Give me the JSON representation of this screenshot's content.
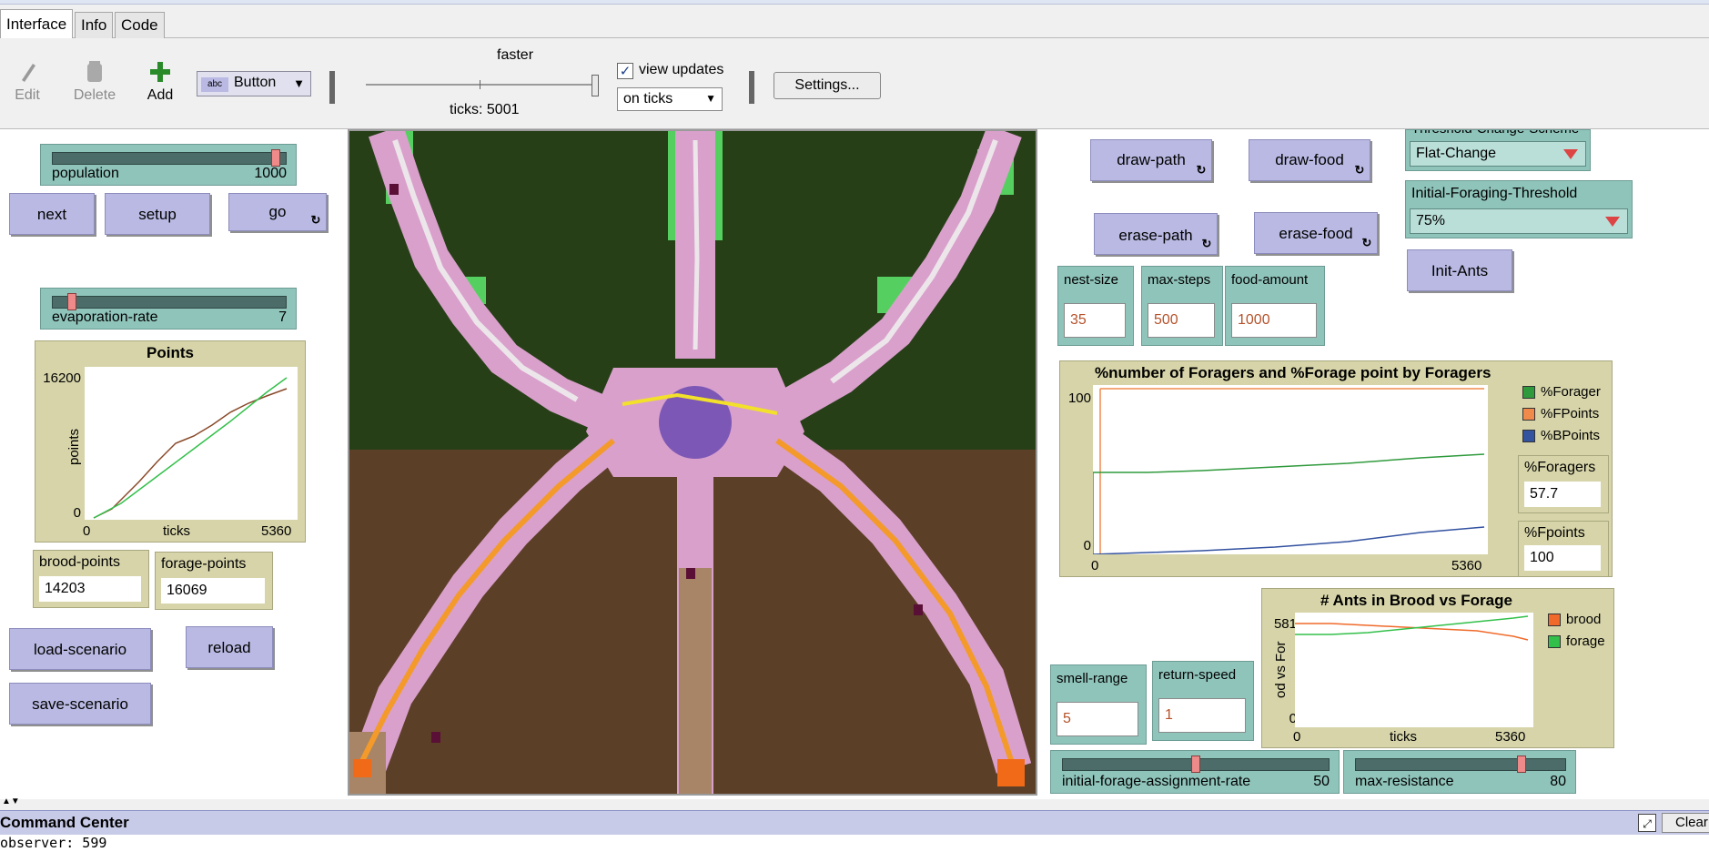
{
  "tabs": [
    "Interface",
    "Info",
    "Code"
  ],
  "toolbar": {
    "edit": "Edit",
    "delete": "Delete",
    "add": "Add",
    "widget_type": "Button",
    "speed_label": "faster",
    "ticks_label": "ticks: 5001",
    "view_updates": "view updates",
    "view_updates_checked": true,
    "update_mode": "on ticks",
    "settings": "Settings..."
  },
  "left": {
    "population": {
      "label": "population",
      "value": "1000",
      "fraction": 0.97
    },
    "buttons": {
      "next": "next",
      "setup": "setup",
      "go": "go"
    },
    "evaporation": {
      "label": "evaporation-rate",
      "value": "7",
      "fraction": 0.07
    },
    "points_plot": {
      "title": "Points",
      "ylabel": "points",
      "xlabel": "ticks",
      "ymax": "16200",
      "ymin": "0",
      "xmin": "0",
      "xmax": "5360"
    },
    "brood_points": {
      "label": "brood-points",
      "value": "14203"
    },
    "forage_points": {
      "label": "forage-points",
      "value": "16069"
    },
    "load_scenario": "load-scenario",
    "reload": "reload",
    "save_scenario": "save-scenario"
  },
  "right": {
    "draw_path": "draw-path",
    "draw_food": "draw-food",
    "erase_path": "erase-path",
    "erase_food": "erase-food",
    "threshold_scheme": {
      "label": "Threshold-Change-Scheme",
      "value": "Flat-Change"
    },
    "initial_threshold": {
      "label": "Initial-Foraging-Threshold",
      "value": "75%"
    },
    "init_ants": "Init-Ants",
    "nest_size": {
      "label": "nest-size",
      "value": "35"
    },
    "max_steps": {
      "label": "max-steps",
      "value": "500"
    },
    "food_amount": {
      "label": "food-amount",
      "value": "1000"
    },
    "foragers_plot": {
      "title": "%number of Foragers and %Forage point by Foragers",
      "ymax": "100",
      "ymin": "0",
      "xmin": "0",
      "xmax": "5360",
      "legend": [
        "%Forager",
        "%FPoints",
        "%BPoints"
      ],
      "colors": [
        "#2f9a3c",
        "#f08a4b",
        "#3352a0"
      ]
    },
    "pct_foragers": {
      "label": "%Foragers",
      "value": "57.7"
    },
    "pct_fpoints": {
      "label": "%Fpoints",
      "value": "100"
    },
    "ants_plot": {
      "title": "# Ants in Brood vs Forage",
      "ylabel": "od vs For",
      "xlabel": "ticks",
      "ymax": "581",
      "ymin": "0",
      "xmin": "0",
      "xmax": "5360",
      "legend": [
        "brood",
        "forage"
      ],
      "colors": [
        "#f06a2a",
        "#33c04a"
      ]
    },
    "smell_range": {
      "label": "smell-range",
      "value": "5"
    },
    "return_speed": {
      "label": "return-speed",
      "value": "1"
    },
    "forage_rate": {
      "label": "initial-forage-assignment-rate",
      "value": "50",
      "fraction": 0.5
    },
    "max_resistance": {
      "label": "max-resistance",
      "value": "80",
      "fraction": 0.8
    }
  },
  "command_center": {
    "title": "Command Center",
    "clear": "Clear",
    "output": "observer: 599"
  }
}
